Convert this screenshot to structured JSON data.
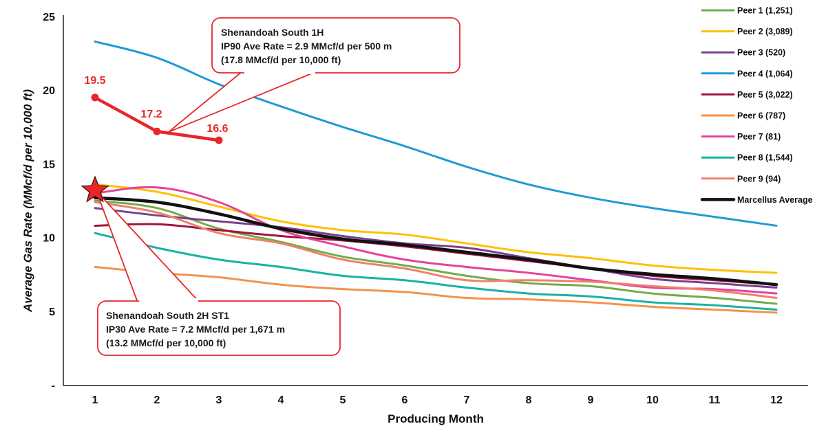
{
  "chart_data": {
    "type": "line",
    "title": "",
    "xlabel": "Producing Month",
    "ylabel_main": "Average Gas Rate ",
    "ylabel_unit": "(MMcf/d per 10,000 ft)",
    "x": [
      1,
      2,
      3,
      4,
      5,
      6,
      7,
      8,
      9,
      10,
      11,
      12
    ],
    "x_tick_labels": [
      "1",
      "2",
      "3",
      "4",
      "5",
      "6",
      "7",
      "8",
      "9",
      "10",
      "11",
      "12"
    ],
    "ylim": [
      0,
      25
    ],
    "y_ticks": [
      0,
      5,
      10,
      15,
      20,
      25
    ],
    "y_tick_labels": [
      "-",
      "5",
      "10",
      "15",
      "20",
      "25"
    ],
    "grid": false,
    "legend_position": "top-right",
    "series": [
      {
        "name": "Peer 1 (1,251)",
        "color": "#70ad47",
        "values": [
          12.5,
          12.0,
          10.6,
          9.7,
          8.7,
          8.1,
          7.4,
          6.9,
          6.7,
          6.2,
          5.9,
          5.5
        ]
      },
      {
        "name": "Peer 2 (3,089)",
        "color": "#ffc000",
        "values": [
          13.6,
          13.1,
          12.1,
          11.1,
          10.5,
          10.2,
          9.6,
          9.0,
          8.6,
          8.1,
          7.8,
          7.6
        ]
      },
      {
        "name": "Peer 3 (520)",
        "color": "#7b3f8e",
        "values": [
          12.0,
          11.5,
          11.1,
          10.7,
          10.1,
          9.6,
          9.3,
          8.6,
          7.9,
          7.2,
          6.9,
          6.6
        ]
      },
      {
        "name": "Peer 4 (1,064)",
        "color": "#1f9bd7",
        "values": [
          23.3,
          22.2,
          20.4,
          18.9,
          17.5,
          16.2,
          14.8,
          13.6,
          12.7,
          12.0,
          11.4,
          10.8
        ]
      },
      {
        "name": "Peer 5 (3,022)",
        "color": "#a0153e",
        "values": [
          10.8,
          10.9,
          10.5,
          10.1,
          9.8,
          9.4,
          8.9,
          8.4,
          7.9,
          7.4,
          7.1,
          6.8
        ]
      },
      {
        "name": "Peer 6 (787)",
        "color": "#f4934a",
        "values": [
          8.0,
          7.6,
          7.3,
          6.8,
          6.5,
          6.3,
          5.9,
          5.8,
          5.6,
          5.3,
          5.1,
          4.9
        ]
      },
      {
        "name": "Peer 7 (81)",
        "color": "#e6439a",
        "values": [
          13.0,
          13.4,
          12.4,
          10.5,
          9.4,
          8.5,
          8.0,
          7.6,
          7.1,
          6.6,
          6.5,
          6.2
        ]
      },
      {
        "name": "Peer 8 (1,544)",
        "color": "#17b3a3",
        "values": [
          10.3,
          9.3,
          8.5,
          8.0,
          7.4,
          7.1,
          6.6,
          6.2,
          6.0,
          5.6,
          5.4,
          5.1
        ]
      },
      {
        "name": "Peer 9 (94)",
        "color": "#f0806d",
        "values": [
          12.4,
          11.7,
          10.3,
          9.6,
          8.5,
          7.9,
          7.1,
          7.1,
          7.0,
          6.7,
          6.4,
          5.9
        ]
      },
      {
        "name": "Marcellus Average",
        "color": "#111111",
        "values": [
          12.7,
          12.4,
          11.6,
          10.6,
          9.9,
          9.5,
          9.0,
          8.5,
          7.9,
          7.5,
          7.2,
          6.8
        ]
      }
    ],
    "highlight_series": {
      "name": "Shenandoah South 1H",
      "color": "#e8262a",
      "x": [
        1,
        2,
        3
      ],
      "values": [
        19.5,
        17.2,
        16.6
      ],
      "labels": [
        "19.5",
        "17.2",
        "16.6"
      ]
    },
    "star_marker": {
      "name": "Shenandoah South 2H ST1",
      "x": 1,
      "value": 13.2,
      "color": "#e8262a"
    },
    "annotations": [
      {
        "id": "callout-1h",
        "lines": [
          "Shenandoah South 1H",
          "IP90 Ave Rate = 2.9 MMcf/d per 500 m",
          "(17.8 MMcf/d per 10,000 ft)"
        ],
        "target_x": 2.2,
        "target_value": 17.2
      },
      {
        "id": "callout-2h",
        "lines": [
          "Shenandoah South 2H ST1",
          "IP30 Ave Rate = 7.2 MMcf/d per 1,671 m",
          "(13.2 MMcf/d per 10,000 ft)"
        ],
        "target_x": 1,
        "target_value": 13.2
      }
    ]
  }
}
